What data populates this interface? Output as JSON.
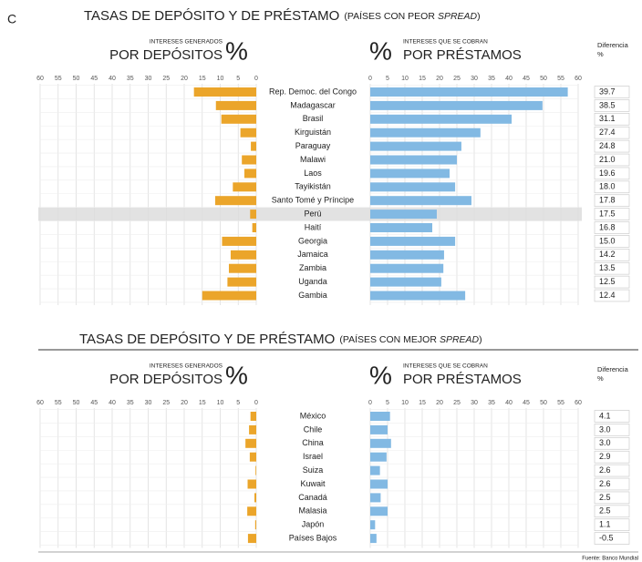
{
  "corner_label": "C",
  "source": "Fuente: Banco Mundial",
  "chart_data": [
    {
      "type": "bar",
      "title": "TASAS DE DEPÓSITO Y DE PRÉSTAMO",
      "subtitle": [
        "(PAÍSES CON PEOR",
        "SPREAD",
        ")"
      ],
      "legend_left": {
        "note": "INTERESES GENERADOS",
        "label": "POR DEPÓSITOS",
        "unit": "%"
      },
      "legend_right": {
        "note": "INTERESES QUE SE COBRAN",
        "label": "POR PRÉSTAMOS",
        "unit": "%"
      },
      "difference_header": [
        "Diferencia",
        "%"
      ],
      "categories": [
        "Rep. Democ. del Congo",
        "Madagascar",
        "Brasil",
        "Kirguistán",
        "Paraguay",
        "Malawi",
        "Laos",
        "Tayikistán",
        "Santo Tomé y Príncipe",
        "Perú",
        "Haití",
        "Georgia",
        "Jamaica",
        "Zambia",
        "Uganda",
        "Gambia"
      ],
      "highlight": "Perú",
      "series": [
        {
          "name": "POR DEPÓSITOS",
          "color": "#eba52a",
          "axis": "x",
          "values": [
            17.3,
            11.2,
            9.7,
            4.4,
            1.5,
            4,
            3.3,
            6.5,
            11.4,
            1.7,
            1.1,
            9.5,
            7.1,
            7.6,
            8,
            15
          ]
        },
        {
          "name": "POR PRÉSTAMOS",
          "color": "#82b9e3",
          "axis": "x2",
          "values": [
            57,
            49.7,
            40.8,
            31.8,
            26.3,
            25,
            22.9,
            24.5,
            29.2,
            19.2,
            17.9,
            24.5,
            21.3,
            21.1,
            20.5,
            27.4
          ]
        }
      ],
      "differences": [
        39.7,
        38.5,
        31.1,
        27.4,
        24.8,
        21.0,
        19.6,
        18.0,
        17.8,
        17.5,
        16.8,
        15.0,
        14.2,
        13.5,
        12.5,
        12.4
      ],
      "xlim": [
        0,
        60
      ],
      "xticks": [
        60,
        55,
        50,
        45,
        40,
        35,
        30,
        25,
        20,
        15,
        10,
        5,
        0
      ],
      "x2lim": [
        0,
        60
      ],
      "x2ticks": [
        0,
        5,
        10,
        15,
        20,
        25,
        30,
        35,
        40,
        45,
        50,
        55,
        60
      ],
      "grid": true
    },
    {
      "type": "bar",
      "title": "TASAS DE DEPÓSITO Y DE PRÉSTAMO",
      "subtitle": [
        "(PAÍSES CON MEJOR",
        "SPREAD",
        ")"
      ],
      "legend_left": {
        "note": "INTERESES GENERADOS",
        "label": "POR DEPÓSITOS",
        "unit": "%"
      },
      "legend_right": {
        "note": "INTERESES QUE SE COBRAN",
        "label": "POR PRÉSTAMOS",
        "unit": "%"
      },
      "difference_header": [
        "Diferencia",
        "%"
      ],
      "categories": [
        "México",
        "Chile",
        "China",
        "Israel",
        "Suiza",
        "Kuwait",
        "Canadá",
        "Malasia",
        "Japón",
        "Países Bajos"
      ],
      "series": [
        {
          "name": "POR DEPÓSITOS",
          "color": "#eba52a",
          "axis": "x",
          "values": [
            1.6,
            2.0,
            3.0,
            1.8,
            0.2,
            2.4,
            0.5,
            2.5,
            0.3,
            2.3
          ]
        },
        {
          "name": "POR PRÉSTAMOS",
          "color": "#82b9e3",
          "axis": "x2",
          "values": [
            5.7,
            5.0,
            6.0,
            4.7,
            2.8,
            5.0,
            3.0,
            5.0,
            1.4,
            1.8
          ]
        }
      ],
      "differences": [
        4.1,
        3.0,
        3.0,
        2.9,
        2.6,
        2.6,
        2.5,
        2.5,
        1.1,
        -0.5
      ],
      "xlim": [
        0,
        60
      ],
      "xticks": [
        60,
        55,
        50,
        45,
        40,
        35,
        30,
        25,
        20,
        15,
        10,
        5,
        0
      ],
      "x2lim": [
        0,
        60
      ],
      "x2ticks": [
        0,
        5,
        10,
        15,
        20,
        25,
        30,
        35,
        40,
        45,
        50,
        55,
        60
      ],
      "grid": true
    }
  ]
}
